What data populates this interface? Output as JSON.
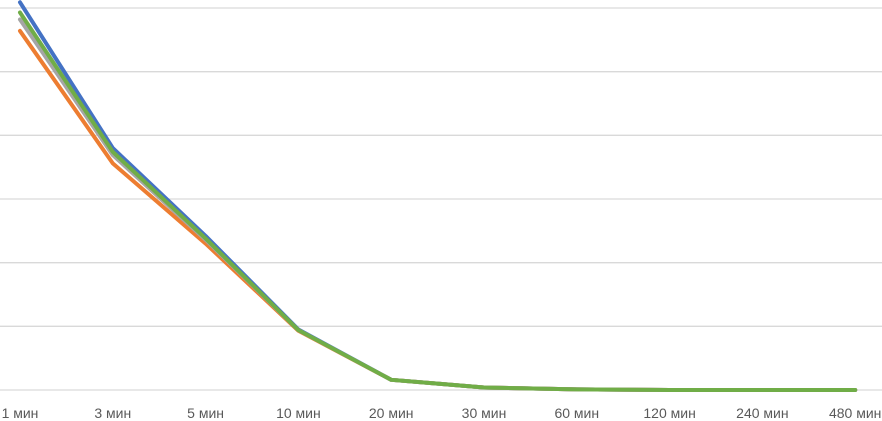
{
  "chart_data": {
    "type": "line",
    "title": "",
    "xlabel": "",
    "ylabel": "",
    "categories": [
      "1 мин",
      "3 мин",
      "5 мин",
      "10 мин",
      "20 мин",
      "30 мин",
      "60 мин",
      "120 мин",
      "240 мин",
      "480 мин"
    ],
    "ylim": [
      0,
      6
    ],
    "grid": true,
    "y_tick_labels_visible": false,
    "legend": "none",
    "series": [
      {
        "color": "#4472C4",
        "values": [
          6.09,
          3.8,
          2.42,
          0.95,
          0.16,
          0.04,
          0.01,
          0,
          0,
          0
        ]
      },
      {
        "color": "#ED7D31",
        "values": [
          5.64,
          3.56,
          2.3,
          0.93,
          0.16,
          0.04,
          0.01,
          0,
          0,
          0
        ]
      },
      {
        "color": "#A5A5A5",
        "values": [
          5.82,
          3.69,
          2.36,
          0.94,
          0.16,
          0.04,
          0.01,
          0,
          0,
          0
        ]
      },
      {
        "color": "#70AD47",
        "values": [
          5.93,
          3.74,
          2.38,
          0.94,
          0.16,
          0.04,
          0.01,
          0,
          0,
          0
        ]
      }
    ],
    "gridline_color": "#D9D9D9"
  }
}
